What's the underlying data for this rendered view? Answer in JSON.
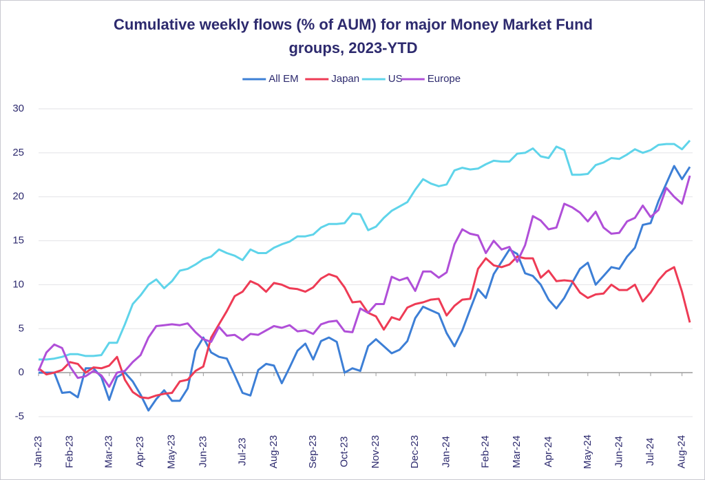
{
  "chart_data": {
    "type": "line",
    "title": "Cumulative weekly flows (% of AUM) for major Money Market Fund groups, 2023-YTD",
    "categories": [
      "Jan-23",
      null,
      null,
      null,
      "Feb-23",
      null,
      null,
      null,
      null,
      "Mar-23",
      null,
      null,
      null,
      "Apr-23",
      null,
      null,
      null,
      "May-23",
      null,
      null,
      null,
      "Jun-23",
      null,
      null,
      null,
      null,
      "Jul-23",
      null,
      null,
      null,
      "Aug-23",
      null,
      null,
      null,
      null,
      "Sep-23",
      null,
      null,
      null,
      "Oct-23",
      null,
      null,
      null,
      "Nov-23",
      null,
      null,
      null,
      null,
      "Dec-23",
      null,
      null,
      null,
      "Jan-24",
      null,
      null,
      null,
      null,
      "Feb-24",
      null,
      null,
      null,
      "Mar-24",
      null,
      null,
      null,
      "Apr-24",
      null,
      null,
      null,
      null,
      "May-24",
      null,
      null,
      null,
      "Jun-24",
      null,
      null,
      null,
      "Jul-24",
      null,
      null,
      null,
      "Aug-24",
      null
    ],
    "series": [
      {
        "name": "All EM",
        "color": "#3d7fd6",
        "values": [
          0,
          0,
          0,
          -2.3,
          -2.2,
          -2.8,
          0.5,
          0.5,
          -0.5,
          -3.1,
          -0.5,
          0,
          -1,
          -2.5,
          -4.3,
          -3,
          -2,
          -3.2,
          -3.2,
          -1.8,
          2.5,
          4,
          2.3,
          1.8,
          1.6,
          -0.3,
          -2.3,
          -2.6,
          0.3,
          1,
          0.8,
          -1.2,
          0.6,
          2.5,
          3.3,
          1.5,
          3.6,
          4,
          3.5,
          0,
          0.5,
          0.2,
          3,
          3.8,
          3,
          2.2,
          2.6,
          3.6,
          6.2,
          7.5,
          7.1,
          6.7,
          4.5,
          3,
          4.8,
          7.2,
          9.5,
          8.5,
          11.2,
          12.6,
          14,
          13.5,
          11.3,
          11,
          10,
          8.3,
          7.3,
          8.5,
          10.2,
          11.8,
          12.5,
          10,
          11,
          12,
          11.8,
          13.2,
          14.2,
          16.8,
          17,
          19.5,
          21.5,
          23.5,
          22,
          23.4
        ]
      },
      {
        "name": "Japan",
        "color": "#ee3b55",
        "values": [
          0.5,
          -0.2,
          0,
          0.3,
          1.2,
          1,
          0,
          0.6,
          0.5,
          0.8,
          1.8,
          -0.8,
          -2.2,
          -2.8,
          -2.9,
          -2.6,
          -2.4,
          -2.3,
          -1,
          -0.8,
          0.2,
          0.7,
          4,
          5.5,
          7,
          8.7,
          9.2,
          10.4,
          10,
          9.2,
          10.2,
          10,
          9.6,
          9.5,
          9.2,
          9.7,
          10.7,
          11.2,
          10.9,
          9.7,
          8,
          8.1,
          6.8,
          6.4,
          4.9,
          6.3,
          6,
          7.4,
          7.8,
          8,
          8.3,
          8.4,
          6.5,
          7.6,
          8.3,
          8.4,
          11.8,
          13,
          12.2,
          12,
          12.3,
          13.2,
          13,
          13,
          10.8,
          11.6,
          10.4,
          10.5,
          10.4,
          9.1,
          8.5,
          8.9,
          9,
          10,
          9.4,
          9.4,
          10,
          8.1,
          9.1,
          10.5,
          11.5,
          12,
          9.2,
          5.7
        ]
      },
      {
        "name": "US",
        "color": "#5fd4ea",
        "values": [
          1.5,
          1.5,
          1.6,
          1.8,
          2.1,
          2.1,
          1.9,
          1.9,
          2,
          3.4,
          3.4,
          5.5,
          7.8,
          8.8,
          10,
          10.6,
          9.6,
          10.4,
          11.6,
          11.8,
          12.3,
          12.9,
          13.2,
          14,
          13.6,
          13.3,
          12.8,
          14,
          13.6,
          13.6,
          14.2,
          14.6,
          14.9,
          15.5,
          15.5,
          15.7,
          16.5,
          16.9,
          16.9,
          17,
          18.1,
          18,
          16.2,
          16.6,
          17.6,
          18.4,
          18.9,
          19.4,
          20.8,
          22,
          21.5,
          21.2,
          21.4,
          23,
          23.3,
          23.1,
          23.2,
          23.7,
          24.1,
          24,
          24,
          24.9,
          25,
          25.5,
          24.6,
          24.4,
          25.7,
          25.3,
          22.5,
          22.5,
          22.6,
          23.6,
          23.9,
          24.4,
          24.3,
          24.8,
          25.4,
          25,
          25.3,
          25.9,
          26,
          26,
          25.4,
          26.4
        ]
      },
      {
        "name": "Europe",
        "color": "#b04fd8",
        "values": [
          0.2,
          2.3,
          3.2,
          2.8,
          0.7,
          -0.6,
          -0.4,
          0.2,
          -0.3,
          -1.6,
          0,
          0.2,
          1.2,
          2,
          4,
          5.3,
          5.4,
          5.5,
          5.4,
          5.6,
          4.6,
          3.8,
          3.5,
          5.2,
          4.2,
          4.3,
          3.7,
          4.4,
          4.3,
          4.8,
          5.3,
          5.1,
          5.4,
          4.7,
          4.8,
          4.4,
          5.5,
          5.8,
          5.9,
          4.7,
          4.6,
          7.3,
          6.8,
          7.8,
          7.8,
          10.9,
          10.5,
          10.8,
          9.3,
          11.5,
          11.5,
          10.8,
          11.4,
          14.6,
          16.3,
          15.8,
          15.6,
          13.6,
          15,
          14,
          14.3,
          12.6,
          14.5,
          17.8,
          17.3,
          16.3,
          16.5,
          19.2,
          18.8,
          18.2,
          17.2,
          18.3,
          16.5,
          15.8,
          15.9,
          17.2,
          17.6,
          19,
          17.7,
          18.5,
          21,
          20,
          19.2,
          22.4
        ]
      }
    ],
    "ylim": [
      -5,
      30
    ],
    "yticks": [
      -5,
      0,
      5,
      10,
      15,
      20,
      25,
      30
    ],
    "grid": true,
    "legend": "top"
  }
}
